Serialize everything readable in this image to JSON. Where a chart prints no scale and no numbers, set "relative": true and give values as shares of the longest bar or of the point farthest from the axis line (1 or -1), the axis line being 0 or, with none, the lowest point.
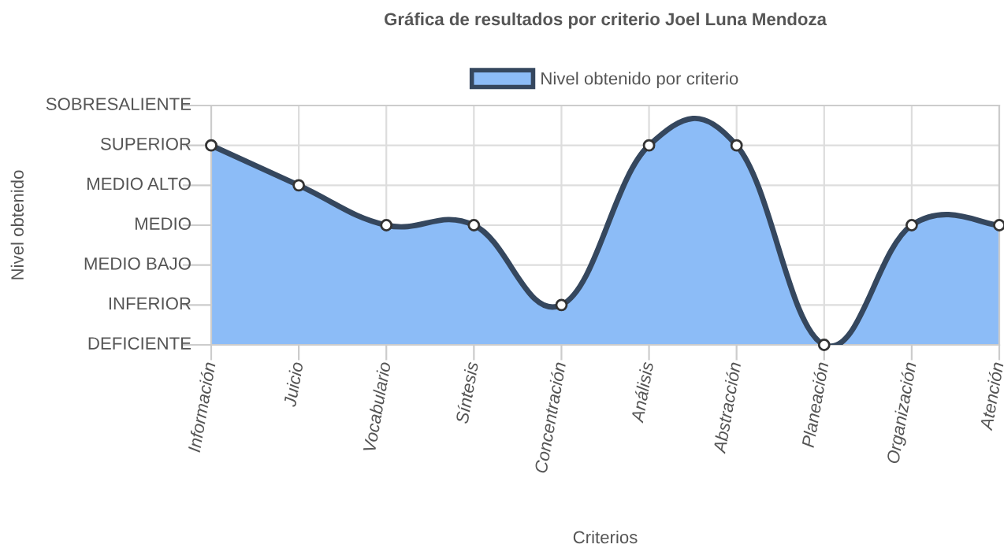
{
  "chart_data": {
    "type": "area",
    "title": "Gráfica de resultados por criterio Joel Luna Mendoza",
    "xlabel": "Criterios",
    "categories": [
      "Información",
      "Juicio",
      "Vocabulario",
      "Síntesis",
      "Concentración",
      "Análisis",
      "Abstracción",
      "Planeación",
      "Organización",
      "Atención"
    ],
    "series": [
      {
        "name": "Nivel obtenido por criterio",
        "color": "#8cbcf7",
        "values": [
          1,
          0.8,
          0.6,
          0.6,
          0.2,
          1,
          1,
          0,
          0.6,
          0.6
        ]
      }
    ],
    "relative": true,
    "annotations": [
      "DEFICIENTE",
      "INFERIOR",
      "MEDIO BAJO",
      "MEDIO",
      "MEDIO ALTO",
      "SUPERIOR",
      "SOBRESALIENTE",
      "Nivel obtenido"
    ],
    "grid": true,
    "legend": "top",
    "marker": "circle",
    "line_style": "solid"
  }
}
